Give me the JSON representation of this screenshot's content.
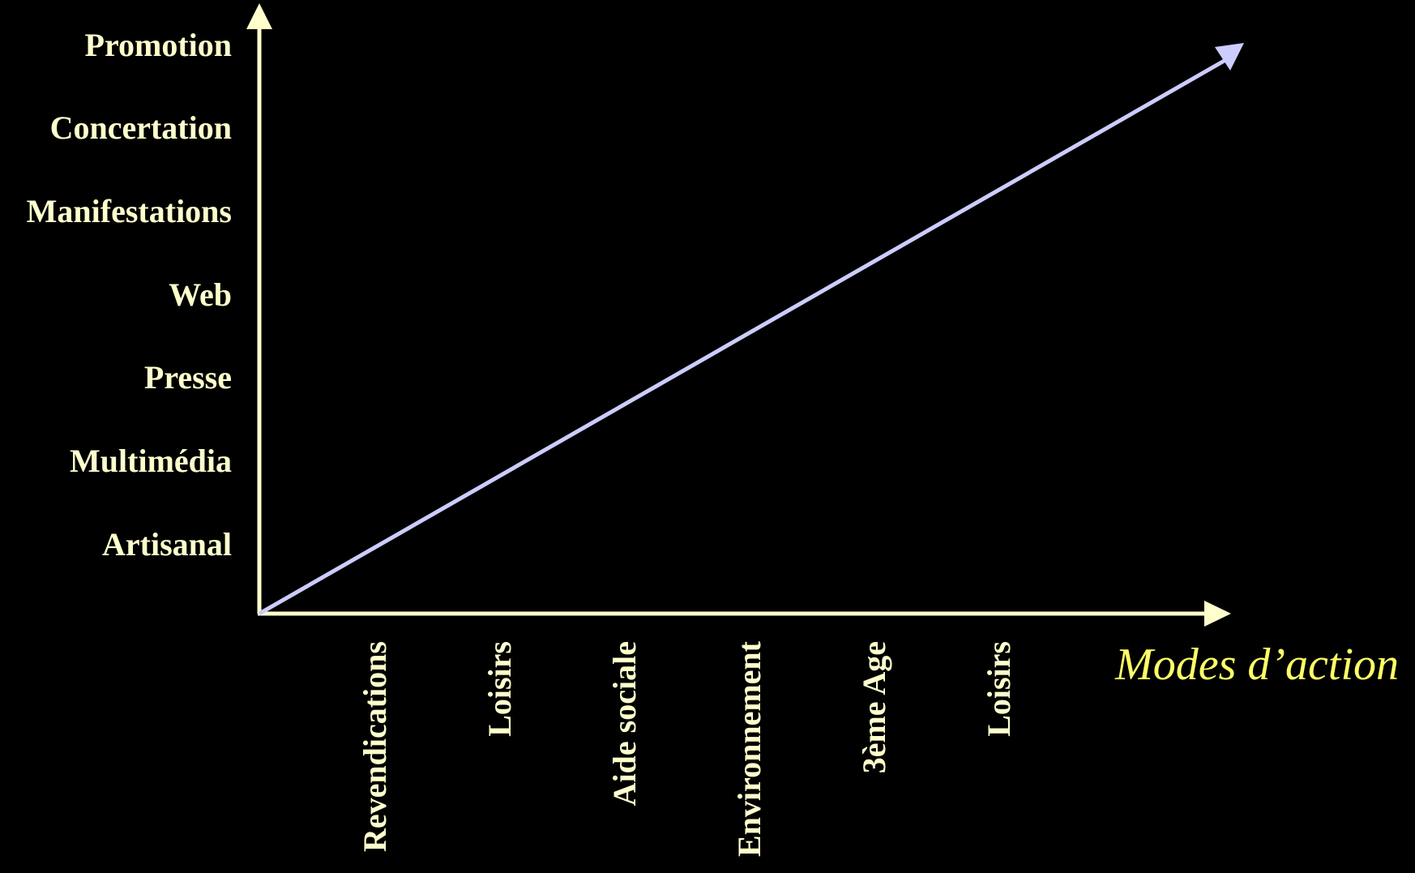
{
  "colors": {
    "background": "#000000",
    "axis": "#FFFFCC",
    "label": "#FFFFCC",
    "axis_title": "#FFFF66",
    "trend_arrow": "#CCCCFF"
  },
  "y_axis": {
    "labels": [
      "Artisanal",
      "Multimédia",
      "Presse",
      "Web",
      "Manifestations",
      "Concertation",
      "Promotion"
    ]
  },
  "x_axis": {
    "labels": [
      "Revendications",
      "Loisirs",
      "Aide sociale",
      "Environnement",
      "3ème Age",
      "Loisirs"
    ],
    "title": "Modes d’action"
  }
}
